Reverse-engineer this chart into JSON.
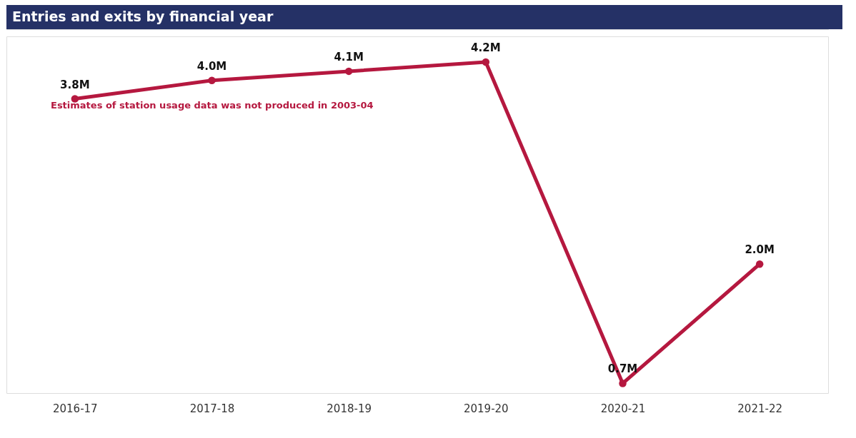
{
  "chart_data": {
    "type": "line",
    "title": "Entries and exits by financial year",
    "categories": [
      "2016-17",
      "2017-18",
      "2018-19",
      "2019-20",
      "2020-21",
      "2021-22"
    ],
    "values": [
      3.8,
      4.0,
      4.1,
      4.2,
      0.7,
      2.0
    ],
    "value_labels": [
      "3.8M",
      "4.0M",
      "4.1M",
      "4.2M",
      "0.7M",
      "2.0M"
    ],
    "color": "#b5183f",
    "marker": "circle",
    "line_style": "solid",
    "grid": false,
    "tick_labels": "x",
    "annotations": [
      "Estimates of station usage data was not produced in 2003-04"
    ]
  }
}
